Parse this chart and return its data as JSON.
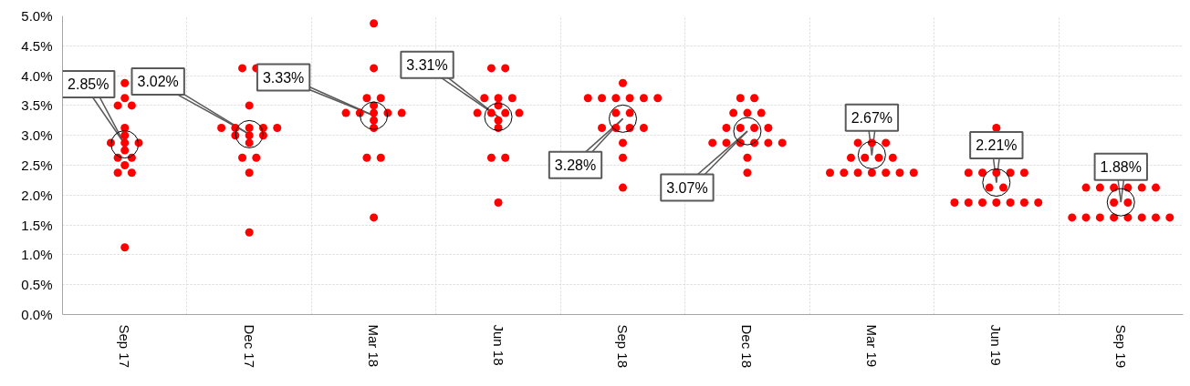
{
  "chart_data": {
    "type": "scatter",
    "categories": [
      "Sep 17",
      "Dec 17",
      "Mar 18",
      "Jun 18",
      "Sep 18",
      "Dec 18",
      "Mar 19",
      "Jun 19",
      "Sep 19"
    ],
    "ylim": [
      0,
      5
    ],
    "yticks": [
      {
        "value": 0,
        "label": "0.0%"
      },
      {
        "value": 0.5,
        "label": "0.5%"
      },
      {
        "value": 1,
        "label": "1.0%"
      },
      {
        "value": 1.5,
        "label": "1.5%"
      },
      {
        "value": 2,
        "label": "2.0%"
      },
      {
        "value": 2.5,
        "label": "2.5%"
      },
      {
        "value": 3,
        "label": "3.0%"
      },
      {
        "value": 3.5,
        "label": "3.5%"
      },
      {
        "value": 4,
        "label": "4.0%"
      },
      {
        "value": 4.5,
        "label": "4.5%"
      },
      {
        "value": 5,
        "label": "5.0%"
      }
    ],
    "grid": true,
    "series": [
      {
        "marker": "circle",
        "color": "#ff0000",
        "x": [
          "Sep 17",
          "Sep 17",
          "Sep 17",
          "Sep 17",
          "Sep 17",
          "Sep 17",
          "Sep 17",
          "Sep 17",
          "Sep 17",
          "Sep 17",
          "Sep 17",
          "Sep 17",
          "Sep 17",
          "Sep 17",
          "Sep 17",
          "Sep 17",
          "Dec 17",
          "Dec 17",
          "Dec 17",
          "Dec 17",
          "Dec 17",
          "Dec 17",
          "Dec 17",
          "Dec 17",
          "Dec 17",
          "Dec 17",
          "Dec 17",
          "Dec 17",
          "Dec 17",
          "Dec 17",
          "Dec 17",
          "Dec 17",
          "Mar 18",
          "Mar 18",
          "Mar 18",
          "Mar 18",
          "Mar 18",
          "Mar 18",
          "Mar 18",
          "Mar 18",
          "Mar 18",
          "Mar 18",
          "Mar 18",
          "Mar 18",
          "Mar 18",
          "Mar 18",
          "Mar 18",
          "Jun 18",
          "Jun 18",
          "Jun 18",
          "Jun 18",
          "Jun 18",
          "Jun 18",
          "Jun 18",
          "Jun 18",
          "Jun 18",
          "Jun 18",
          "Jun 18",
          "Jun 18",
          "Jun 18",
          "Jun 18",
          "Jun 18",
          "Sep 18",
          "Sep 18",
          "Sep 18",
          "Sep 18",
          "Sep 18",
          "Sep 18",
          "Sep 18",
          "Sep 18",
          "Sep 18",
          "Sep 18",
          "Sep 18",
          "Sep 18",
          "Sep 18",
          "Sep 18",
          "Sep 18",
          "Sep 18",
          "Dec 18",
          "Dec 18",
          "Dec 18",
          "Dec 18",
          "Dec 18",
          "Dec 18",
          "Dec 18",
          "Dec 18",
          "Dec 18",
          "Dec 18",
          "Dec 18",
          "Dec 18",
          "Dec 18",
          "Dec 18",
          "Dec 18",
          "Dec 18",
          "Dec 18",
          "Mar 19",
          "Mar 19",
          "Mar 19",
          "Mar 19",
          "Mar 19",
          "Mar 19",
          "Mar 19",
          "Mar 19",
          "Mar 19",
          "Mar 19",
          "Mar 19",
          "Mar 19",
          "Mar 19",
          "Mar 19",
          "Jun 19",
          "Jun 19",
          "Jun 19",
          "Jun 19",
          "Jun 19",
          "Jun 19",
          "Jun 19",
          "Jun 19",
          "Jun 19",
          "Jun 19",
          "Jun 19",
          "Jun 19",
          "Jun 19",
          "Jun 19",
          "Jun 19",
          "Sep 19",
          "Sep 19",
          "Sep 19",
          "Sep 19",
          "Sep 19",
          "Sep 19",
          "Sep 19",
          "Sep 19",
          "Sep 19",
          "Sep 19",
          "Sep 19",
          "Sep 19",
          "Sep 19",
          "Sep 19",
          "Sep 19",
          "Sep 19"
        ],
        "values": [
          3.875,
          3.625,
          3.5,
          3.5,
          3.125,
          3.0,
          2.875,
          2.875,
          2.875,
          2.75,
          2.625,
          2.625,
          2.5,
          2.375,
          2.375,
          1.125,
          4.125,
          4.125,
          3.5,
          3.125,
          3.125,
          3.125,
          3.125,
          3.125,
          3.0,
          3.0,
          3.0,
          2.875,
          2.625,
          2.625,
          2.375,
          1.375,
          4.875,
          4.125,
          3.625,
          3.625,
          3.5,
          3.375,
          3.375,
          3.375,
          3.375,
          3.375,
          3.25,
          3.125,
          2.625,
          2.625,
          1.625,
          4.125,
          4.125,
          3.625,
          3.625,
          3.625,
          3.5,
          3.375,
          3.375,
          3.375,
          3.375,
          3.25,
          3.125,
          2.625,
          2.625,
          1.875,
          3.875,
          3.625,
          3.625,
          3.625,
          3.625,
          3.625,
          3.625,
          3.375,
          3.375,
          3.125,
          3.125,
          3.125,
          3.125,
          2.875,
          2.625,
          2.125,
          3.625,
          3.625,
          3.375,
          3.375,
          3.375,
          3.125,
          3.125,
          3.125,
          3.125,
          2.875,
          2.875,
          2.875,
          2.875,
          2.875,
          2.875,
          2.625,
          2.375,
          2.875,
          2.875,
          2.875,
          2.625,
          2.625,
          2.625,
          2.625,
          2.375,
          2.375,
          2.375,
          2.375,
          2.375,
          2.375,
          2.375,
          3.125,
          2.375,
          2.375,
          2.375,
          2.375,
          2.375,
          2.125,
          2.125,
          1.875,
          1.875,
          1.875,
          1.875,
          1.875,
          1.875,
          1.875,
          2.125,
          2.125,
          2.125,
          2.125,
          2.125,
          2.125,
          1.875,
          1.875,
          1.625,
          1.625,
          1.625,
          1.625,
          1.625,
          1.625,
          1.625,
          1.625
        ]
      },
      {
        "marker": "circle",
        "color": "#000000",
        "values": [
          2.85,
          3.02,
          3.33,
          3.31,
          3.28,
          3.07,
          2.67,
          2.21,
          1.88
        ]
      }
    ],
    "annotations": [
      {
        "text": "2.85%",
        "x": "Sep 17",
        "y": 2.85
      },
      {
        "text": "3.02%",
        "x": "Dec 17",
        "y": 3.02
      },
      {
        "text": "3.33%",
        "x": "Mar 18",
        "y": 3.33
      },
      {
        "text": "3.31%",
        "x": "Jun 18",
        "y": 3.31
      },
      {
        "text": "3.28%",
        "x": "Sep 18",
        "y": 3.28
      },
      {
        "text": "3.07%",
        "x": "Dec 18",
        "y": 3.07
      },
      {
        "text": "2.67%",
        "x": "Mar 19",
        "y": 2.67
      },
      {
        "text": "2.21%",
        "x": "Jun 19",
        "y": 2.21
      },
      {
        "text": "1.88%",
        "x": "Sep 19",
        "y": 1.88
      }
    ]
  }
}
